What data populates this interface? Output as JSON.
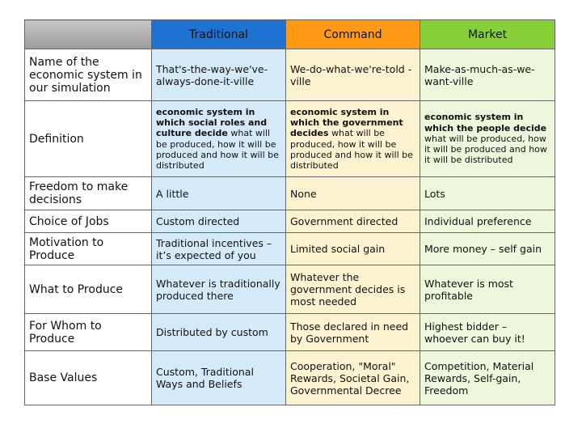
{
  "header": {
    "traditional": "Traditional",
    "command": "Command",
    "market": "Market"
  },
  "rows": [
    {
      "label": "Name of the economic system in our simulation",
      "traditional": "That's-the-way-we've-always-done-it-ville",
      "command": "We-do-what-we're-told -ville",
      "market": "Make-as-much-as-we-want-ville"
    },
    {
      "label": "Definition",
      "traditional_bold": "economic system in which social roles and culture decide",
      "traditional_rest": " what will be produced, how it will be produced and how it will be distributed",
      "command_bold": "economic system in which the government decides",
      "command_rest": " what will be produced, how it will be produced and how it will be distributed",
      "market_bold": "economic system in which the people decide",
      "market_rest": " what will be produced, how it will be produced and how it will be distributed"
    },
    {
      "label": "Freedom to make decisions",
      "traditional": "A little",
      "command": "None",
      "market": "Lots"
    },
    {
      "label": "Choice of Jobs",
      "traditional": "Custom directed",
      "command": "Government directed",
      "market": "Individual preference"
    },
    {
      "label": "Motivation to Produce",
      "traditional": "Traditional incentives – it’s expected of you",
      "command": "Limited social gain",
      "market": "More money – self gain"
    },
    {
      "label": "What to Produce",
      "traditional": "Whatever is traditionally produced there",
      "command": "Whatever the government decides is most needed",
      "market": "Whatever is most profitable"
    },
    {
      "label": "For Whom to Produce",
      "traditional": "Distributed by custom",
      "command": "Those declared in need by Government",
      "market": "Highest bidder – whoever can buy it!"
    },
    {
      "label": "Base Values",
      "traditional": "Custom, Traditional Ways and Beliefs",
      "command": "Cooperation, \"Moral\" Rewards, Societal Gain, Governmental Decree",
      "market": "Competition, Material Rewards, Self-gain, Freedom"
    }
  ]
}
